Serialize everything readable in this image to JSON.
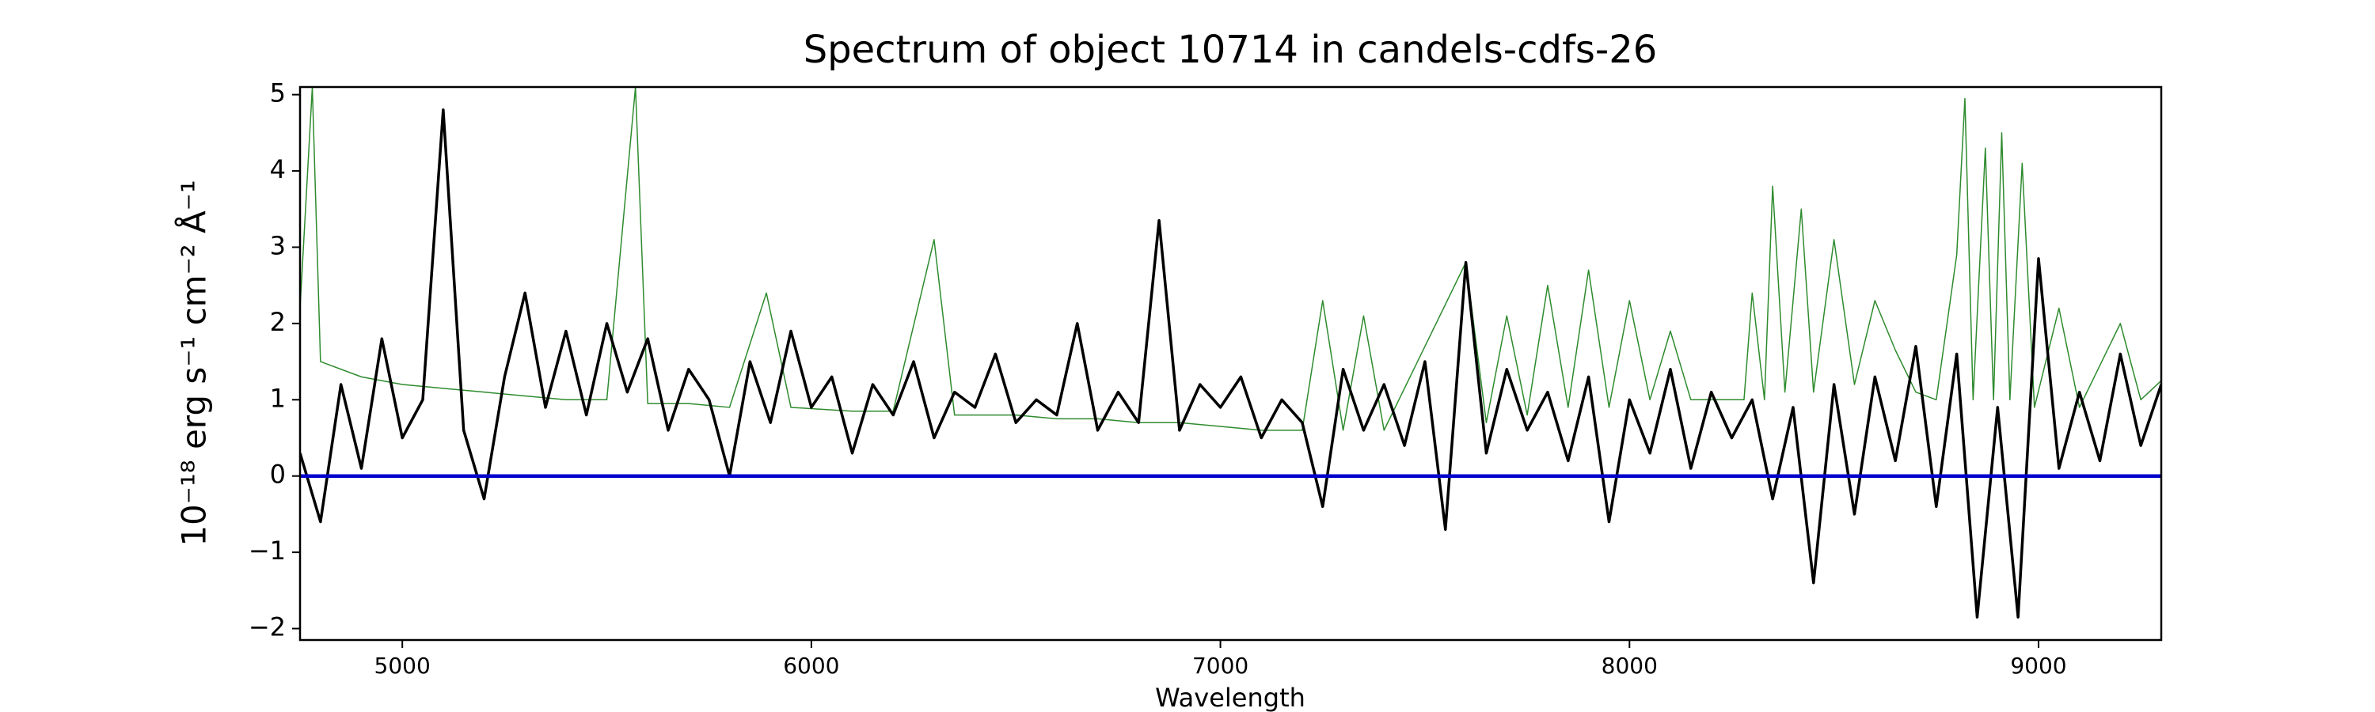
{
  "chart_data": {
    "type": "line",
    "title": "Spectrum of object 10714 in candels-cdfs-26",
    "xlabel": "Wavelength",
    "ylabel": "10⁻¹⁸ erg s⁻¹ cm⁻² Å⁻¹",
    "xlim": [
      4750,
      9300
    ],
    "ylim": [
      -2.15,
      5.1
    ],
    "xticks": [
      5000,
      6000,
      7000,
      8000,
      9000
    ],
    "yticks": [
      {
        "value": -2,
        "label": "−2"
      },
      {
        "value": -1,
        "label": "−1"
      },
      0,
      1,
      2,
      3,
      4,
      5
    ],
    "series": [
      {
        "color": "#2e8b2e",
        "linewidth": 1.5,
        "x": [
          4750,
          4780,
          4800,
          4900,
          5000,
          5100,
          5200,
          5300,
          5400,
          5500,
          5570,
          5600,
          5700,
          5800,
          5890,
          5950,
          6100,
          6200,
          6300,
          6350,
          6500,
          6600,
          6700,
          6800,
          6900,
          7000,
          7100,
          7200,
          7250,
          7300,
          7350,
          7400,
          7600,
          7650,
          7700,
          7750,
          7800,
          7850,
          7900,
          7950,
          8000,
          8050,
          8100,
          8150,
          8280,
          8300,
          8330,
          8350,
          8380,
          8420,
          8450,
          8500,
          8550,
          8600,
          8650,
          8700,
          8750,
          8800,
          8820,
          8840,
          8870,
          8890,
          8910,
          8930,
          8960,
          8990,
          9050,
          9100,
          9200,
          9250,
          9300
        ],
        "values": [
          2.2,
          5.1,
          1.5,
          1.3,
          1.2,
          1.15,
          1.1,
          1.05,
          1.0,
          1.0,
          5.1,
          0.95,
          0.95,
          0.9,
          2.4,
          0.9,
          0.85,
          0.85,
          3.1,
          0.8,
          0.8,
          0.75,
          0.75,
          0.7,
          0.7,
          0.65,
          0.6,
          0.6,
          2.3,
          0.6,
          2.1,
          0.6,
          2.8,
          0.7,
          2.1,
          0.8,
          2.5,
          0.9,
          2.7,
          0.9,
          2.3,
          1.0,
          1.9,
          1.0,
          1.0,
          2.4,
          1.0,
          3.8,
          1.1,
          3.5,
          1.1,
          3.1,
          1.2,
          2.3,
          1.65,
          1.1,
          1.0,
          2.9,
          4.95,
          1.0,
          4.3,
          1.0,
          4.5,
          1.0,
          4.1,
          0.9,
          2.2,
          0.9,
          2.0,
          1.0,
          1.25
        ]
      },
      {
        "color": "#000000",
        "linewidth": 3.5,
        "x": [
          4750,
          4800,
          4850,
          4900,
          4950,
          5000,
          5050,
          5100,
          5150,
          5200,
          5250,
          5300,
          5350,
          5400,
          5450,
          5500,
          5550,
          5600,
          5650,
          5700,
          5750,
          5800,
          5850,
          5900,
          5950,
          6000,
          6050,
          6100,
          6150,
          6200,
          6250,
          6300,
          6350,
          6400,
          6450,
          6500,
          6550,
          6600,
          6650,
          6700,
          6750,
          6800,
          6850,
          6900,
          6950,
          7000,
          7050,
          7100,
          7150,
          7200,
          7250,
          7300,
          7350,
          7400,
          7450,
          7500,
          7550,
          7600,
          7650,
          7700,
          7750,
          7800,
          7850,
          7900,
          7950,
          8000,
          8050,
          8100,
          8150,
          8200,
          8250,
          8300,
          8350,
          8400,
          8450,
          8500,
          8550,
          8600,
          8650,
          8700,
          8750,
          8800,
          8850,
          8900,
          8950,
          9000,
          9050,
          9100,
          9150,
          9200,
          9250,
          9300
        ],
        "values": [
          0.3,
          -0.6,
          1.2,
          0.1,
          1.8,
          0.5,
          1.0,
          4.8,
          0.6,
          -0.3,
          1.3,
          2.4,
          0.9,
          1.9,
          0.8,
          2.0,
          1.1,
          1.8,
          0.6,
          1.4,
          1.0,
          0.0,
          1.5,
          0.7,
          1.9,
          0.9,
          1.3,
          0.3,
          1.2,
          0.8,
          1.5,
          0.5,
          1.1,
          0.9,
          1.6,
          0.7,
          1.0,
          0.8,
          2.0,
          0.6,
          1.1,
          0.7,
          3.35,
          0.6,
          1.2,
          0.9,
          1.3,
          0.5,
          1.0,
          0.7,
          -0.4,
          1.4,
          0.6,
          1.2,
          0.4,
          1.5,
          -0.7,
          2.8,
          0.3,
          1.4,
          0.6,
          1.1,
          0.2,
          1.3,
          -0.6,
          1.0,
          0.3,
          1.4,
          0.1,
          1.1,
          0.5,
          1.0,
          -0.3,
          0.9,
          -1.4,
          1.2,
          -0.5,
          1.3,
          0.2,
          1.7,
          -0.4,
          1.6,
          -1.85,
          0.9,
          -1.85,
          2.85,
          0.1,
          1.1,
          0.2,
          1.6,
          0.4,
          1.2
        ]
      },
      {
        "color": "#0000cc",
        "linewidth": 4.5,
        "x": [
          4750,
          9300
        ],
        "values": [
          0,
          0
        ]
      }
    ]
  }
}
